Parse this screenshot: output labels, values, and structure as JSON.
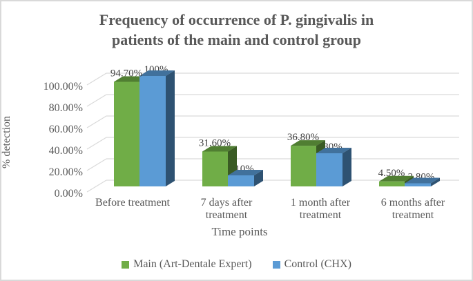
{
  "window": {
    "background": "#ffffff",
    "border_color": "#d9d9d9"
  },
  "chart_data": {
    "type": "bar",
    "variant": "3d-clustered-column",
    "title": "Frequency of occurrence of P. gingivalis in patients of the main and control group",
    "title_lines": [
      "Frequency of occurrence of P. gingivalis in",
      "patients of the main and control group"
    ],
    "xlabel": "Time points",
    "ylabel": "% detection",
    "categories": [
      "Before treatment",
      "7 days after treatment",
      "1 month after treatment",
      "6 months after treatment"
    ],
    "category_lines": [
      [
        "Before treatment"
      ],
      [
        "7 days after",
        "treatment"
      ],
      [
        "1 month after",
        "treatment"
      ],
      [
        "6 months after",
        "treatment"
      ]
    ],
    "series": [
      {
        "name": "Main (Art-Dentale Expert)",
        "color": "#70AD47",
        "color_top": "#507E32",
        "color_side": "#3A5B24",
        "values": [
          94.7,
          31.6,
          36.8,
          4.5
        ],
        "labels": [
          "94.70%",
          "31.60%",
          "36.80%",
          "4.50%"
        ]
      },
      {
        "name": "Control (CHX)",
        "color": "#5B9BD5",
        "color_top": "#41719C",
        "color_side": "#2E5272",
        "values": [
          100,
          10,
          30,
          2.8
        ],
        "labels": [
          "100%",
          "10%",
          "30%",
          "2.80%"
        ]
      }
    ],
    "ylim": [
      0,
      100
    ],
    "ytick_values": [
      0,
      20,
      40,
      60,
      80,
      100
    ],
    "yticks": [
      "0.00%",
      "20.00%",
      "40.00%",
      "60.00%",
      "80.00%",
      "100.00%"
    ],
    "grid": true,
    "gridline_color": "#D9D9D9",
    "legend_position": "bottom",
    "text_color": "#595959",
    "data_label_color": "#404040"
  }
}
